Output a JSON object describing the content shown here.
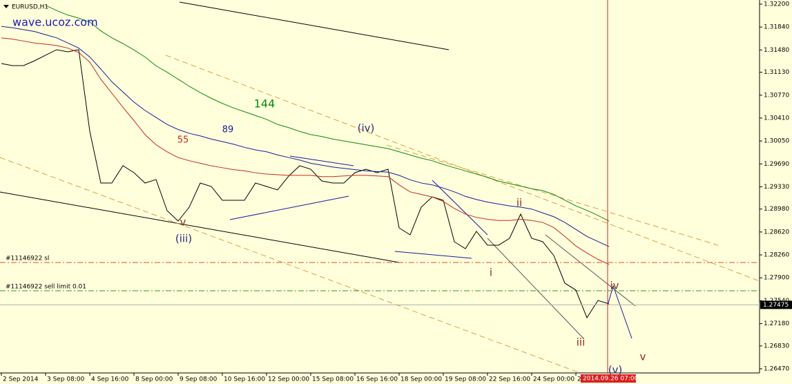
{
  "chart_data": {
    "type": "line",
    "categories": [
      "2 Sep 2014",
      null,
      null,
      null,
      "3 Sep 08:00",
      null,
      null,
      null,
      "4 Sep 16:00",
      null,
      null,
      null,
      "8 Sep 00:00",
      null,
      null,
      null,
      "9 Sep 08:00",
      null,
      null,
      null,
      "10 Sep 16:00",
      null,
      null,
      null,
      "12 Sep 00:00",
      null,
      null,
      null,
      "15 Sep 08:00",
      null,
      null,
      null,
      "16 Sep 16:00",
      null,
      null,
      null,
      "18 Sep 00:00",
      null,
      null,
      null,
      "19 Sep 08:00",
      null,
      null,
      null,
      "22 Sep 16:00",
      null,
      null,
      null,
      "24 Sep 00:00",
      null,
      null,
      null,
      "2",
      null,
      null,
      null
    ],
    "series": [
      {
        "name": "EURUSD,H1",
        "color": "#000000",
        "values": [
          1.31267,
          1.31234,
          1.31234,
          1.3131,
          1.31397,
          1.31484,
          1.31451,
          1.31484,
          1.30203,
          1.29389,
          1.29389,
          1.29661,
          1.29552,
          1.29389,
          1.29444,
          1.28955,
          1.28792,
          1.29009,
          1.29389,
          1.29335,
          1.29118,
          1.29118,
          1.29118,
          1.29389,
          1.29335,
          1.29281,
          1.29498,
          1.29661,
          1.29606,
          1.29422,
          1.29389,
          1.29389,
          1.29552,
          1.29606,
          1.29552,
          1.29606,
          1.28684,
          1.28575,
          1.29009,
          1.29172,
          1.29118,
          1.28467,
          1.28358,
          1.2863,
          1.28413,
          1.28413,
          1.28521,
          1.28901,
          1.28521,
          1.28467,
          1.2825,
          1.27816,
          1.27707,
          1.27273,
          1.27544,
          1.2749
        ]
      },
      {
        "name": "144",
        "color": "#0a8a0a",
        "values": [
          null,
          null,
          null,
          null,
          1.3218,
          1.321,
          1.3203,
          1.3198,
          1.3192,
          1.3178,
          1.3167,
          1.3158,
          1.3148,
          1.3137,
          1.3123,
          1.3113,
          1.3102,
          1.3091,
          1.3081,
          1.3072,
          1.3064,
          1.3057,
          1.3051,
          1.3045,
          1.3039,
          1.3031,
          1.3026,
          1.302,
          1.3015,
          1.3012,
          1.3008,
          1.3005,
          1.3002,
          1.2999,
          1.2996,
          1.2993,
          1.2988,
          1.2983,
          1.2978,
          1.2974,
          1.2968,
          1.2963,
          1.2958,
          1.2953,
          1.2948,
          1.2942,
          1.2938,
          1.2934,
          1.293,
          1.2927,
          1.2921,
          1.2912,
          1.2903,
          1.2896,
          1.2888,
          1.2879
        ]
      },
      {
        "name": "89",
        "color": "#1a1a9a",
        "values": [
          1.3185,
          1.3183,
          1.318,
          1.3177,
          1.3172,
          1.3167,
          1.3159,
          1.3151,
          1.3137,
          1.3118,
          1.3098,
          1.3082,
          1.3066,
          1.3053,
          1.3042,
          1.3031,
          1.3023,
          1.3017,
          1.3013,
          1.3008,
          1.3004,
          1.3,
          1.2995,
          1.2991,
          1.2988,
          1.2983,
          1.2979,
          1.2975,
          1.297,
          1.2967,
          1.2964,
          1.2962,
          1.296,
          1.2958,
          1.2957,
          1.2956,
          1.2951,
          1.2944,
          1.2939,
          1.2936,
          1.2931,
          1.2925,
          1.2918,
          1.2913,
          1.2909,
          1.2906,
          1.2903,
          1.2901,
          1.2898,
          1.2892,
          1.2886,
          1.2877,
          1.2866,
          1.2855,
          1.2847,
          1.2839
        ]
      },
      {
        "name": "55",
        "color": "#c8281e",
        "values": [
          1.3167,
          1.3165,
          1.3162,
          1.3159,
          1.3157,
          1.3155,
          1.3151,
          1.3144,
          1.3129,
          1.3102,
          1.308,
          1.3058,
          1.3037,
          1.3015,
          1.2999,
          1.2988,
          1.2979,
          1.2974,
          1.297,
          1.2966,
          1.2963,
          1.296,
          1.2958,
          1.2955,
          1.2953,
          1.2952,
          1.2951,
          1.2951,
          1.2951,
          1.2949,
          1.2949,
          1.295,
          1.2951,
          1.2951,
          1.295,
          1.2949,
          1.2936,
          1.2925,
          1.2921,
          1.2917,
          1.291,
          1.2899,
          1.289,
          1.2885,
          1.2882,
          1.288,
          1.288,
          1.2882,
          1.288,
          1.2877,
          1.2869,
          1.2855,
          1.284,
          1.2829,
          1.2819,
          1.2811
        ]
      }
    ],
    "ylim": [
      1.26405,
      1.32265
    ],
    "yticks": [
      {
        "value": 1.322,
        "label": "1.32200"
      },
      {
        "value": 1.3184,
        "label": "1.31840"
      },
      {
        "value": 1.3148,
        "label": "1.31480"
      },
      {
        "value": 1.3113,
        "label": "1.31130"
      },
      {
        "value": 1.3077,
        "label": "1.30770"
      },
      {
        "value": 1.3041,
        "label": "1.30410"
      },
      {
        "value": 1.3005,
        "label": "1.30050"
      },
      {
        "value": 1.2969,
        "label": "1.29690"
      },
      {
        "value": 1.2933,
        "label": "1.29330"
      },
      {
        "value": 1.2898,
        "label": "1.28980"
      },
      {
        "value": 1.2862,
        "label": "1.28620"
      },
      {
        "value": 1.2826,
        "label": "1.28260"
      },
      {
        "value": 1.279,
        "label": "1.27900"
      },
      {
        "value": 1.2754,
        "label": "1.27540"
      },
      {
        "value": 1.2718,
        "label": "1.27180"
      },
      {
        "value": 1.2683,
        "label": "1.26830"
      },
      {
        "value": 1.2647,
        "label": "1.26470"
      }
    ],
    "levels": [
      {
        "label": "#11146922 sl",
        "value": 1.2814,
        "color": "#e0502a"
      },
      {
        "label": "#11146922 sell limit 0.01",
        "value": 1.27696,
        "color": "#2a9a2a"
      }
    ],
    "current_price": 1.27475,
    "cursor_time": "2014.09.26 07:00",
    "annotations": [
      {
        "text": "wave.ucoz.com",
        "color": "#1a1ab8"
      },
      {
        "text": "(iv)",
        "color": "#2a2a80"
      },
      {
        "text": "v",
        "color": "#8b2a1a"
      },
      {
        "text": "(iii)",
        "color": "#2a2a80"
      },
      {
        "text": "ii",
        "color": "#8b2a1a"
      },
      {
        "text": "i",
        "color": "#8b2a1a"
      },
      {
        "text": "iii",
        "color": "#8b2a1a"
      },
      {
        "text": "iv",
        "color": "#8b2a1a"
      },
      {
        "text": "v",
        "color": "#8b2a1a"
      },
      {
        "text": "(v)",
        "color": "#2a2a80"
      }
    ]
  }
}
